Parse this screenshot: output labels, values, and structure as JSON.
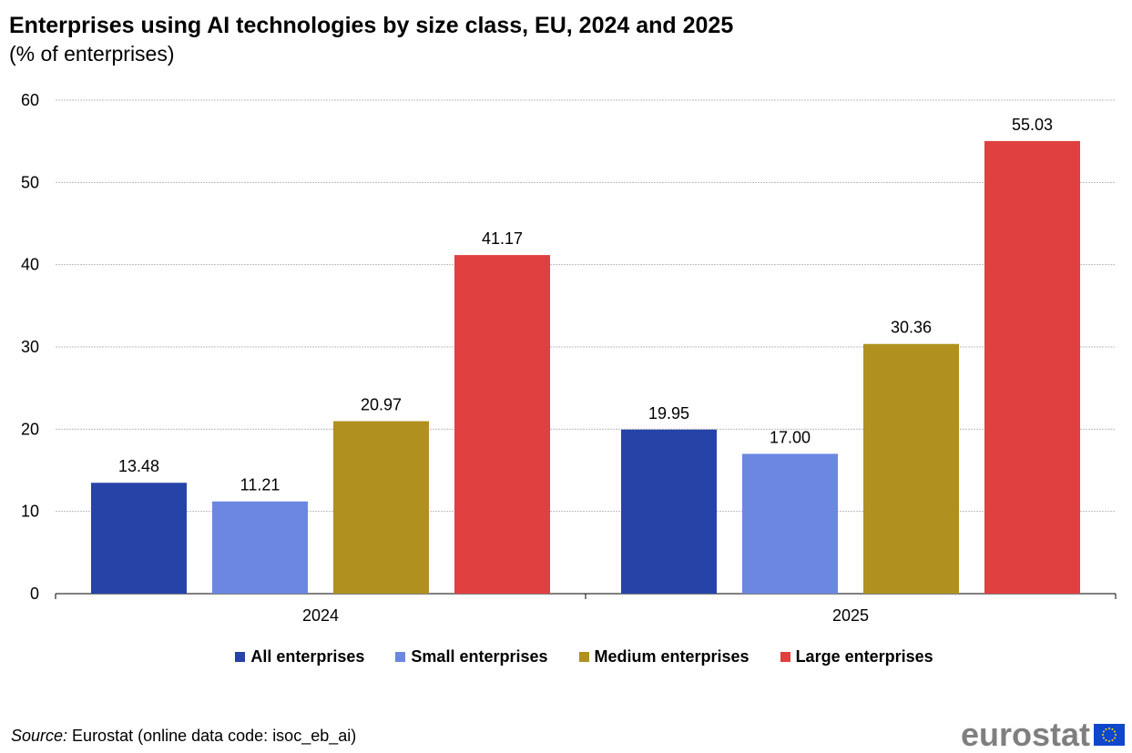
{
  "chart_data": {
    "type": "bar",
    "title": "Enterprises using AI technologies by size class, EU, 2024 and 2025",
    "subtitle": "(% of enterprises)",
    "categories": [
      "2024",
      "2025"
    ],
    "series": [
      {
        "name": "All enterprises",
        "color": "#2644A7",
        "values": [
          13.48,
          19.95
        ]
      },
      {
        "name": "Small enterprises",
        "color": "#6B87E0",
        "values": [
          11.21,
          17.0
        ]
      },
      {
        "name": "Medium enterprises",
        "color": "#B09120",
        "values": [
          20.97,
          30.36
        ]
      },
      {
        "name": "Large enterprises",
        "color": "#E04040",
        "values": [
          41.17,
          55.03
        ]
      }
    ],
    "ylim": [
      0,
      60
    ],
    "yticks": [
      0,
      10,
      20,
      30,
      40,
      50,
      60
    ],
    "grid": true,
    "legend_position": "bottom",
    "xlabel": "",
    "ylabel": ""
  },
  "source": {
    "label": "Source:",
    "text": " Eurostat (online data code: isoc_eb_ai)"
  },
  "logo": {
    "text": "eurostat",
    "icon": "eu-flag-icon"
  }
}
